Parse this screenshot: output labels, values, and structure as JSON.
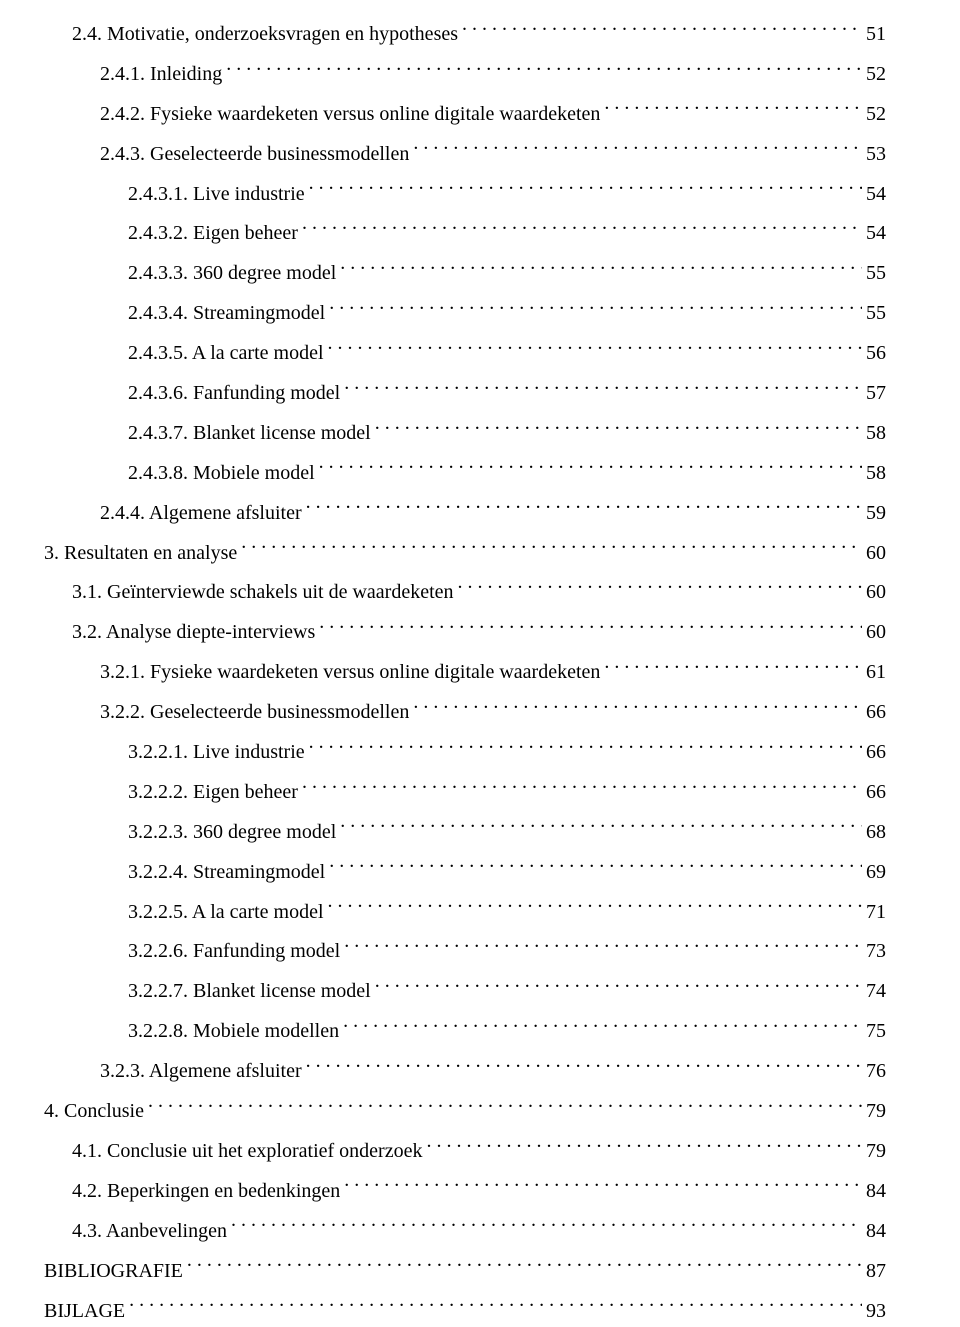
{
  "fontFamily": "Times New Roman, Times, serif",
  "fontSize": 20,
  "textColor": "#000000",
  "backgroundColor": "#ffffff",
  "entries": [
    {
      "indent": 1,
      "label": "2.4. Motivatie, onderzoeksvragen en hypotheses",
      "page": "51"
    },
    {
      "indent": 2,
      "label": "2.4.1. Inleiding",
      "page": "52"
    },
    {
      "indent": 2,
      "label": "2.4.2. Fysieke waardeketen versus online digitale waardeketen",
      "page": "52"
    },
    {
      "indent": 2,
      "label": "2.4.3. Geselecteerde businessmodellen",
      "page": "53"
    },
    {
      "indent": 3,
      "label": "2.4.3.1. Live industrie",
      "page": "54"
    },
    {
      "indent": 3,
      "label": "2.4.3.2. Eigen beheer",
      "page": "54"
    },
    {
      "indent": 3,
      "label": "2.4.3.3. 360 degree model",
      "page": "55"
    },
    {
      "indent": 3,
      "label": "2.4.3.4. Streamingmodel",
      "page": "55"
    },
    {
      "indent": 3,
      "label": "2.4.3.5. A la carte model",
      "page": "56"
    },
    {
      "indent": 3,
      "label": "2.4.3.6. Fanfunding model",
      "page": "57"
    },
    {
      "indent": 3,
      "label": "2.4.3.7. Blanket license model",
      "page": "58"
    },
    {
      "indent": 3,
      "label": "2.4.3.8. Mobiele model",
      "page": "58"
    },
    {
      "indent": 2,
      "label": "2.4.4. Algemene afsluiter",
      "page": "59"
    },
    {
      "indent": 0,
      "label": "3. Resultaten en analyse",
      "page": "60"
    },
    {
      "indent": 1,
      "label": "3.1. Geïnterviewde schakels uit de waardeketen",
      "page": "60"
    },
    {
      "indent": 1,
      "label": "3.2. Analyse diepte-interviews",
      "page": "60"
    },
    {
      "indent": 2,
      "label": "3.2.1. Fysieke waardeketen versus online digitale waardeketen",
      "page": "61"
    },
    {
      "indent": 2,
      "label": "3.2.2. Geselecteerde businessmodellen",
      "page": "66"
    },
    {
      "indent": 3,
      "label": "3.2.2.1. Live industrie",
      "page": "66"
    },
    {
      "indent": 3,
      "label": "3.2.2.2. Eigen beheer",
      "page": "66"
    },
    {
      "indent": 3,
      "label": "3.2.2.3. 360 degree model",
      "page": "68"
    },
    {
      "indent": 3,
      "label": "3.2.2.4. Streamingmodel",
      "page": "69"
    },
    {
      "indent": 3,
      "label": "3.2.2.5. A la carte model",
      "page": "71"
    },
    {
      "indent": 3,
      "label": "3.2.2.6. Fanfunding model",
      "page": "73"
    },
    {
      "indent": 3,
      "label": "3.2.2.7. Blanket license model",
      "page": "74"
    },
    {
      "indent": 3,
      "label": "3.2.2.8. Mobiele modellen",
      "page": "75"
    },
    {
      "indent": 2,
      "label": "3.2.3. Algemene afsluiter",
      "page": "76"
    },
    {
      "indent": 0,
      "label": "4. Conclusie",
      "page": "79"
    },
    {
      "indent": 1,
      "label": "4.1. Conclusie uit het exploratief onderzoek",
      "page": "79"
    },
    {
      "indent": 1,
      "label": "4.2. Beperkingen en bedenkingen",
      "page": "84"
    },
    {
      "indent": 1,
      "label": "4.3. Aanbevelingen",
      "page": "84"
    },
    {
      "indent": 0,
      "label": "BIBLIOGRAFIE",
      "page": "87"
    },
    {
      "indent": 0,
      "label": "BIJLAGE",
      "page": "93"
    }
  ]
}
